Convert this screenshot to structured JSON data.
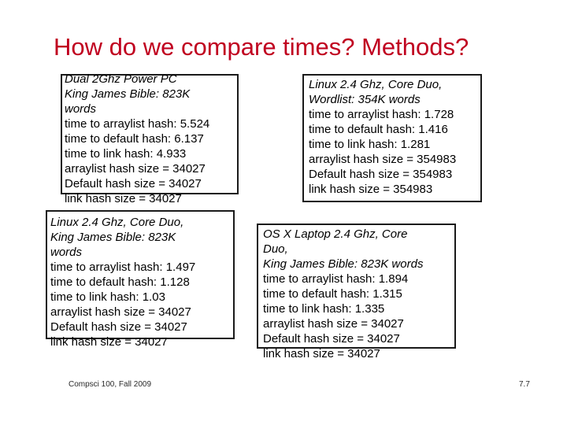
{
  "slide": {
    "title": "How do we compare times? Methods?",
    "footer_left": "Compsci 100, Fall 2009",
    "footer_right": "7.7"
  },
  "boxes": [
    {
      "italic_lines": [
        "Dual 2Ghz Power PC",
        "King James Bible: 823K",
        "words"
      ],
      "lines": [
        "time to arraylist hash: 5.524",
        "time to default hash: 6.137",
        "time to link hash: 4.933",
        "arraylist hash size = 34027",
        "Default hash size = 34027",
        "link hash size = 34027"
      ]
    },
    {
      "italic_lines": [
        "Linux 2.4 Ghz, Core Duo,",
        "Wordlist: 354K words"
      ],
      "lines": [
        "time to arraylist hash: 1.728",
        "time to default hash: 1.416",
        "time to link hash: 1.281",
        "arraylist hash size = 354983",
        "Default hash size = 354983",
        "link hash size = 354983"
      ]
    },
    {
      "italic_lines": [
        "Linux 2.4 Ghz, Core Duo,",
        "King James Bible: 823K",
        "words"
      ],
      "lines": [
        "time to arraylist hash: 1.497",
        "time to default hash: 1.128",
        "time to link hash: 1.03",
        "arraylist hash size = 34027",
        "Default hash size = 34027",
        "link hash size = 34027"
      ]
    },
    {
      "italic_lines": [
        "OS X Laptop 2.4 Ghz, Core",
        "Duo,",
        "King James Bible: 823K words"
      ],
      "lines": [
        "time to arraylist hash: 1.894",
        "time to default hash: 1.315",
        "time to link hash: 1.335",
        "arraylist hash size = 34027",
        "Default hash size = 34027",
        "link hash size = 34027"
      ]
    }
  ]
}
